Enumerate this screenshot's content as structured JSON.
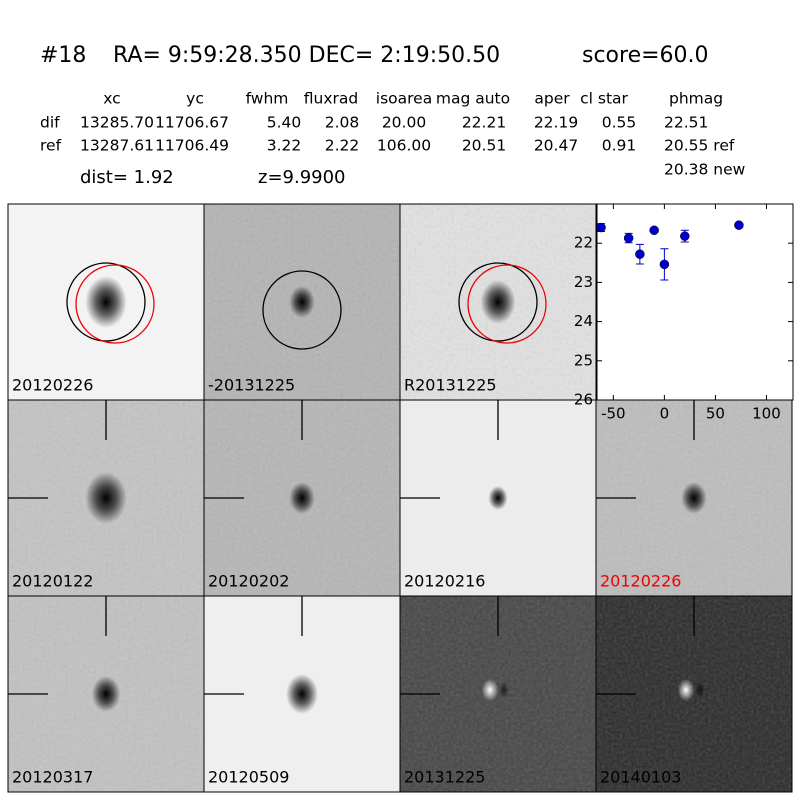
{
  "header": {
    "id": "#18",
    "coords": "RA= 9:59:28.350 DEC= 2:19:50.50",
    "score": "score=60.0"
  },
  "table": {
    "columns": [
      "xc",
      "yc",
      "fwhm",
      "fluxrad",
      "isoarea",
      "mag auto",
      "aper",
      "cl star",
      "phmag"
    ],
    "rows": [
      [
        "dif",
        "13285.70",
        "11706.67",
        "5.40",
        "2.08",
        "20.00",
        "22.21",
        "22.19",
        "0.55",
        "22.51"
      ],
      [
        "ref",
        "13287.61",
        "11706.49",
        "3.22",
        "2.22",
        "106.00",
        "20.51",
        "20.47",
        "0.91",
        "20.55 ref"
      ]
    ],
    "extra": "20.38 new"
  },
  "dist": "dist=  1.92",
  "z": "z=9.9900",
  "panels": [
    {
      "label": "20120226"
    },
    {
      "label": "-20131225"
    },
    {
      "label": "R20131225"
    },
    {
      "label": "20120122"
    },
    {
      "label": "20120202"
    },
    {
      "label": "20120216"
    },
    {
      "label": "20120226"
    },
    {
      "label": "20120317"
    },
    {
      "label": "20120509"
    },
    {
      "label": "20131225"
    },
    {
      "label": "20140103"
    }
  ],
  "chart_data": {
    "type": "scatter",
    "color": "#0000cc",
    "x": [
      -62,
      -35,
      -24,
      -10,
      0,
      20,
      73
    ],
    "y": [
      21.6,
      21.87,
      22.28,
      21.67,
      22.54,
      21.82,
      21.54
    ],
    "yerr": [
      0.1,
      0.12,
      0.25,
      0.05,
      0.4,
      0.15,
      0.05
    ],
    "xlim": [
      -66,
      126
    ],
    "ylim": [
      21,
      26
    ],
    "y_inverted": true,
    "xticks": [
      -50,
      0,
      50,
      100
    ],
    "yticks": [
      22,
      23,
      24,
      25,
      26
    ]
  }
}
